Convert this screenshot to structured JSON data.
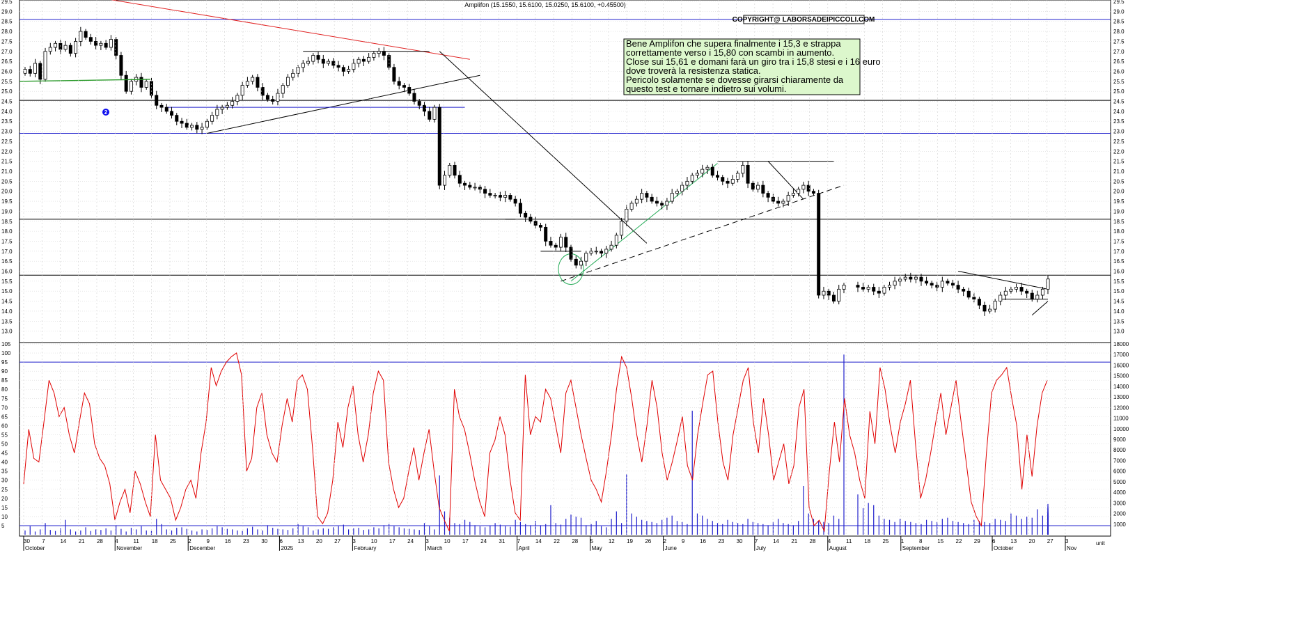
{
  "chart_data": [
    {
      "type": "candlestick",
      "title": "Amplifon (15.1550, 15.6100, 15.0250, 15.6100, +0.45500)",
      "copyright": "COPYRIGHT@ LABORSADEIPICCOLI.COM",
      "ylim": [
        12.5,
        29.5
      ],
      "y_ticks": [
        "13.0",
        "13.5",
        "14.0",
        "14.5",
        "15.0",
        "15.5",
        "16.0",
        "16.5",
        "17.0",
        "17.5",
        "18.0",
        "18.5",
        "19.0",
        "19.5",
        "20.0",
        "20.5",
        "21.0",
        "21.5",
        "22.0",
        "22.5",
        "23.0",
        "23.5",
        "24.0",
        "24.5",
        "25.0",
        "25.5",
        "26.0",
        "26.5",
        "27.0",
        "27.5",
        "28.0",
        "28.5",
        "29.0",
        "29.5"
      ],
      "annotation": [
        "Bene Amplifon che supera finalmente i 15,3 e strappa",
        "correttamente verso i 15,80 con scambi in aumento.",
        "Close sui 15,61 e domani farà un giro tra i 15,8 stesi e i 16 euro",
        "dove troverà la resistenza statica.",
        "Pericolo solamente se dovesse girarsi chiaramente da",
        "questo test e tornare indietro sui volumi."
      ],
      "marker_label": "2",
      "horizontal_levels": [
        {
          "value": 28.6,
          "color": "#2020cc"
        },
        {
          "value": 24.55,
          "color": "#000000"
        },
        {
          "value": 22.9,
          "color": "#2020cc"
        },
        {
          "value": 18.6,
          "color": "#000000"
        },
        {
          "value": 15.8,
          "color": "#000000"
        }
      ],
      "closes": [
        26.1,
        25.9,
        26.4,
        25.6,
        27.0,
        27.2,
        27.4,
        27.1,
        27.3,
        26.9,
        27.5,
        28.0,
        27.7,
        27.5,
        27.3,
        27.4,
        27.2,
        27.6,
        26.8,
        25.8,
        25.0,
        25.5,
        25.7,
        25.2,
        25.5,
        24.8,
        24.3,
        24.2,
        24.0,
        23.8,
        23.5,
        23.4,
        23.2,
        23.3,
        23.1,
        23.2,
        23.5,
        23.8,
        24.1,
        24.2,
        24.3,
        24.5,
        24.8,
        25.3,
        25.5,
        25.7,
        25.2,
        24.8,
        24.6,
        24.5,
        24.9,
        25.3,
        25.7,
        25.9,
        26.2,
        26.4,
        26.5,
        26.8,
        26.6,
        26.4,
        26.5,
        26.3,
        26.2,
        26.0,
        26.1,
        26.4,
        26.6,
        26.5,
        26.7,
        26.9,
        27.0,
        26.8,
        26.2,
        25.5,
        25.3,
        25.2,
        24.9,
        24.5,
        24.3,
        24.0,
        23.6,
        24.2,
        20.3,
        20.8,
        21.3,
        20.8,
        20.4,
        20.3,
        20.2,
        20.2,
        20.1,
        19.9,
        19.8,
        19.8,
        19.7,
        19.8,
        19.6,
        19.4,
        18.9,
        18.7,
        18.5,
        18.3,
        18.2,
        17.5,
        17.3,
        17.2,
        17.7,
        17.2,
        16.6,
        16.3,
        16.5,
        16.9,
        17.0,
        17.0,
        16.9,
        17.1,
        17.3,
        17.8,
        18.5,
        19.1,
        19.4,
        19.6,
        19.9,
        19.7,
        19.5,
        19.4,
        19.3,
        19.5,
        19.9,
        20.0,
        20.3,
        20.5,
        20.8,
        20.9,
        21.1,
        21.2,
        20.8,
        20.7,
        20.5,
        20.4,
        20.6,
        20.9,
        21.3,
        20.4,
        20.1,
        20.3,
        19.9,
        19.7,
        19.5,
        19.4,
        19.5,
        19.8,
        19.9,
        20.1,
        20.3,
        20.0,
        19.9,
        14.8,
        15.0,
        14.8,
        14.5,
        15.1,
        15.3,
        15.2,
        15.1,
        15.2,
        15.0,
        14.9,
        15.2,
        15.3,
        15.5,
        15.6,
        15.7,
        15.6,
        15.7,
        15.5,
        15.4,
        15.3,
        15.2,
        15.5,
        15.4,
        15.3,
        15.1,
        15.0,
        14.7,
        14.6,
        14.3,
        14.0,
        14.1,
        14.5,
        14.8,
        15.0,
        15.1,
        15.2,
        15.0,
        14.9,
        14.6,
        14.8,
        15.1,
        15.61
      ],
      "oscillator": {
        "ylim": [
          0,
          105
        ],
        "y_ticks": [
          "5",
          "10",
          "15",
          "20",
          "25",
          "30",
          "35",
          "40",
          "45",
          "50",
          "55",
          "60",
          "65",
          "70",
          "75",
          "80",
          "85",
          "90",
          "95",
          "100",
          "105"
        ],
        "levels": [
          95,
          5
        ],
        "values": [
          28,
          58,
          42,
          40,
          62,
          85,
          78,
          65,
          70,
          55,
          45,
          62,
          78,
          72,
          50,
          42,
          38,
          28,
          8,
          18,
          25,
          12,
          35,
          28,
          18,
          10,
          55,
          30,
          25,
          20,
          8,
          15,
          25,
          30,
          20,
          45,
          62,
          92,
          82,
          90,
          95,
          98,
          100,
          88,
          35,
          42,
          70,
          78,
          55,
          45,
          40,
          60,
          75,
          62,
          85,
          88,
          80,
          48,
          10,
          6,
          12,
          30,
          62,
          48,
          70,
          82,
          55,
          40,
          55,
          78,
          90,
          85,
          40,
          25,
          15,
          20,
          35,
          48,
          30,
          45,
          58,
          35,
          15,
          8,
          2,
          80,
          65,
          58,
          45,
          30,
          18,
          10,
          45,
          52,
          65,
          55,
          30,
          12,
          8,
          88,
          55,
          65,
          62,
          80,
          75,
          60,
          45,
          78,
          85,
          70,
          55,
          42,
          30,
          25,
          18,
          35,
          55,
          80,
          98,
          92,
          75,
          55,
          40,
          60,
          85,
          70,
          45,
          30,
          40,
          52,
          65,
          38,
          30,
          55,
          72,
          88,
          90,
          62,
          40,
          30,
          55,
          70,
          85,
          92,
          62,
          45,
          75,
          55,
          30,
          40,
          50,
          28,
          38,
          70,
          80,
          15,
          5,
          8,
          2,
          35,
          62,
          40,
          75,
          55,
          45,
          30,
          20,
          68,
          50,
          92,
          80,
          60,
          45,
          62,
          72,
          85,
          50,
          20,
          30,
          45,
          62,
          78,
          55,
          70,
          85,
          62,
          40,
          18,
          10,
          5,
          45,
          78,
          85,
          88,
          92,
          75,
          60,
          25,
          55,
          32,
          60,
          78,
          85
        ]
      },
      "volume": {
        "ylim": [
          0,
          18000
        ],
        "y_ticks": [
          "1000",
          "2000",
          "3000",
          "4000",
          "5000",
          "6000",
          "7000",
          "8000",
          "9000",
          "10000",
          "11000",
          "12000",
          "13000",
          "14000",
          "15000",
          "16000",
          "17000",
          "18000"
        ],
        "values": [
          400,
          800,
          300,
          500,
          1100,
          450,
          350,
          600,
          1400,
          500,
          300,
          400,
          700,
          350,
          500,
          450,
          600,
          400,
          900,
          550,
          300,
          650,
          500,
          800,
          400,
          350,
          1500,
          1000,
          500,
          400,
          650,
          700,
          550,
          400,
          300,
          500,
          450,
          600,
          800,
          700,
          550,
          500,
          400,
          350,
          600,
          750,
          500,
          400,
          900,
          650,
          550,
          500,
          450,
          600,
          1000,
          800,
          700,
          400,
          500,
          600,
          550,
          700,
          800,
          950,
          500,
          600,
          650,
          450,
          500,
          700,
          600,
          900,
          1000,
          800,
          700,
          600,
          550,
          500,
          450,
          1100,
          800,
          500,
          5600,
          2200,
          1600,
          1100,
          1000,
          1400,
          1200,
          900,
          800,
          700,
          850,
          1100,
          950,
          800,
          750,
          1400,
          1200,
          1000,
          900,
          1300,
          900,
          1000,
          2800,
          1100,
          950,
          1500,
          1900,
          1700,
          1600,
          900,
          1000,
          1300,
          800,
          700,
          1500,
          2200,
          1100,
          5700,
          2000,
          1700,
          1400,
          1300,
          1200,
          1100,
          1400,
          1600,
          1800,
          1300,
          1200,
          1000,
          11700,
          2000,
          1800,
          1500,
          1300,
          1100,
          1000,
          1400,
          1200,
          1100,
          1000,
          1500,
          1200,
          1100,
          1000,
          900,
          1200,
          1500,
          1100,
          1000,
          900,
          1300,
          4600,
          2000,
          1500,
          1300,
          1200,
          1100,
          1800,
          1500,
          17000,
          3800,
          2500,
          3000,
          2800,
          1800,
          1500,
          1400,
          1200,
          1500,
          1300,
          1200,
          1100,
          1000,
          1400,
          1300,
          1200,
          1500,
          1600,
          1300,
          1200,
          1100,
          1000,
          1400,
          1300,
          1200,
          1100,
          1500,
          1400,
          1300,
          2000,
          1800,
          1500,
          1700,
          1600,
          2400,
          1800,
          1600,
          2900,
          2000,
          1800,
          2500,
          2200,
          2400,
          2100,
          2600,
          2000,
          1800,
          1900,
          1700,
          1600,
          2100,
          2700
        ]
      },
      "x_date_ticks": [
        "30",
        "7",
        "14",
        "21",
        "28",
        "4",
        "11",
        "18",
        "25",
        "2",
        "9",
        "16",
        "23",
        "30",
        "6",
        "13",
        "20",
        "27",
        "3",
        "10",
        "17",
        "24",
        "3",
        "10",
        "17",
        "24",
        "31",
        "7",
        "14",
        "22",
        "28",
        "5",
        "12",
        "19",
        "26",
        "2",
        "9",
        "16",
        "23",
        "30",
        "7",
        "14",
        "21",
        "28",
        "4",
        "11",
        "18",
        "25",
        "1",
        "8",
        "15",
        "22",
        "29",
        "6",
        "13",
        "20",
        "27",
        "3"
      ],
      "x_month_labels": [
        "October",
        "November",
        "December",
        "2025",
        "February",
        "March",
        "April",
        "May",
        "June",
        "July",
        "August",
        "September",
        "October",
        "Nov"
      ],
      "volume_axis_unit": "unit"
    }
  ]
}
